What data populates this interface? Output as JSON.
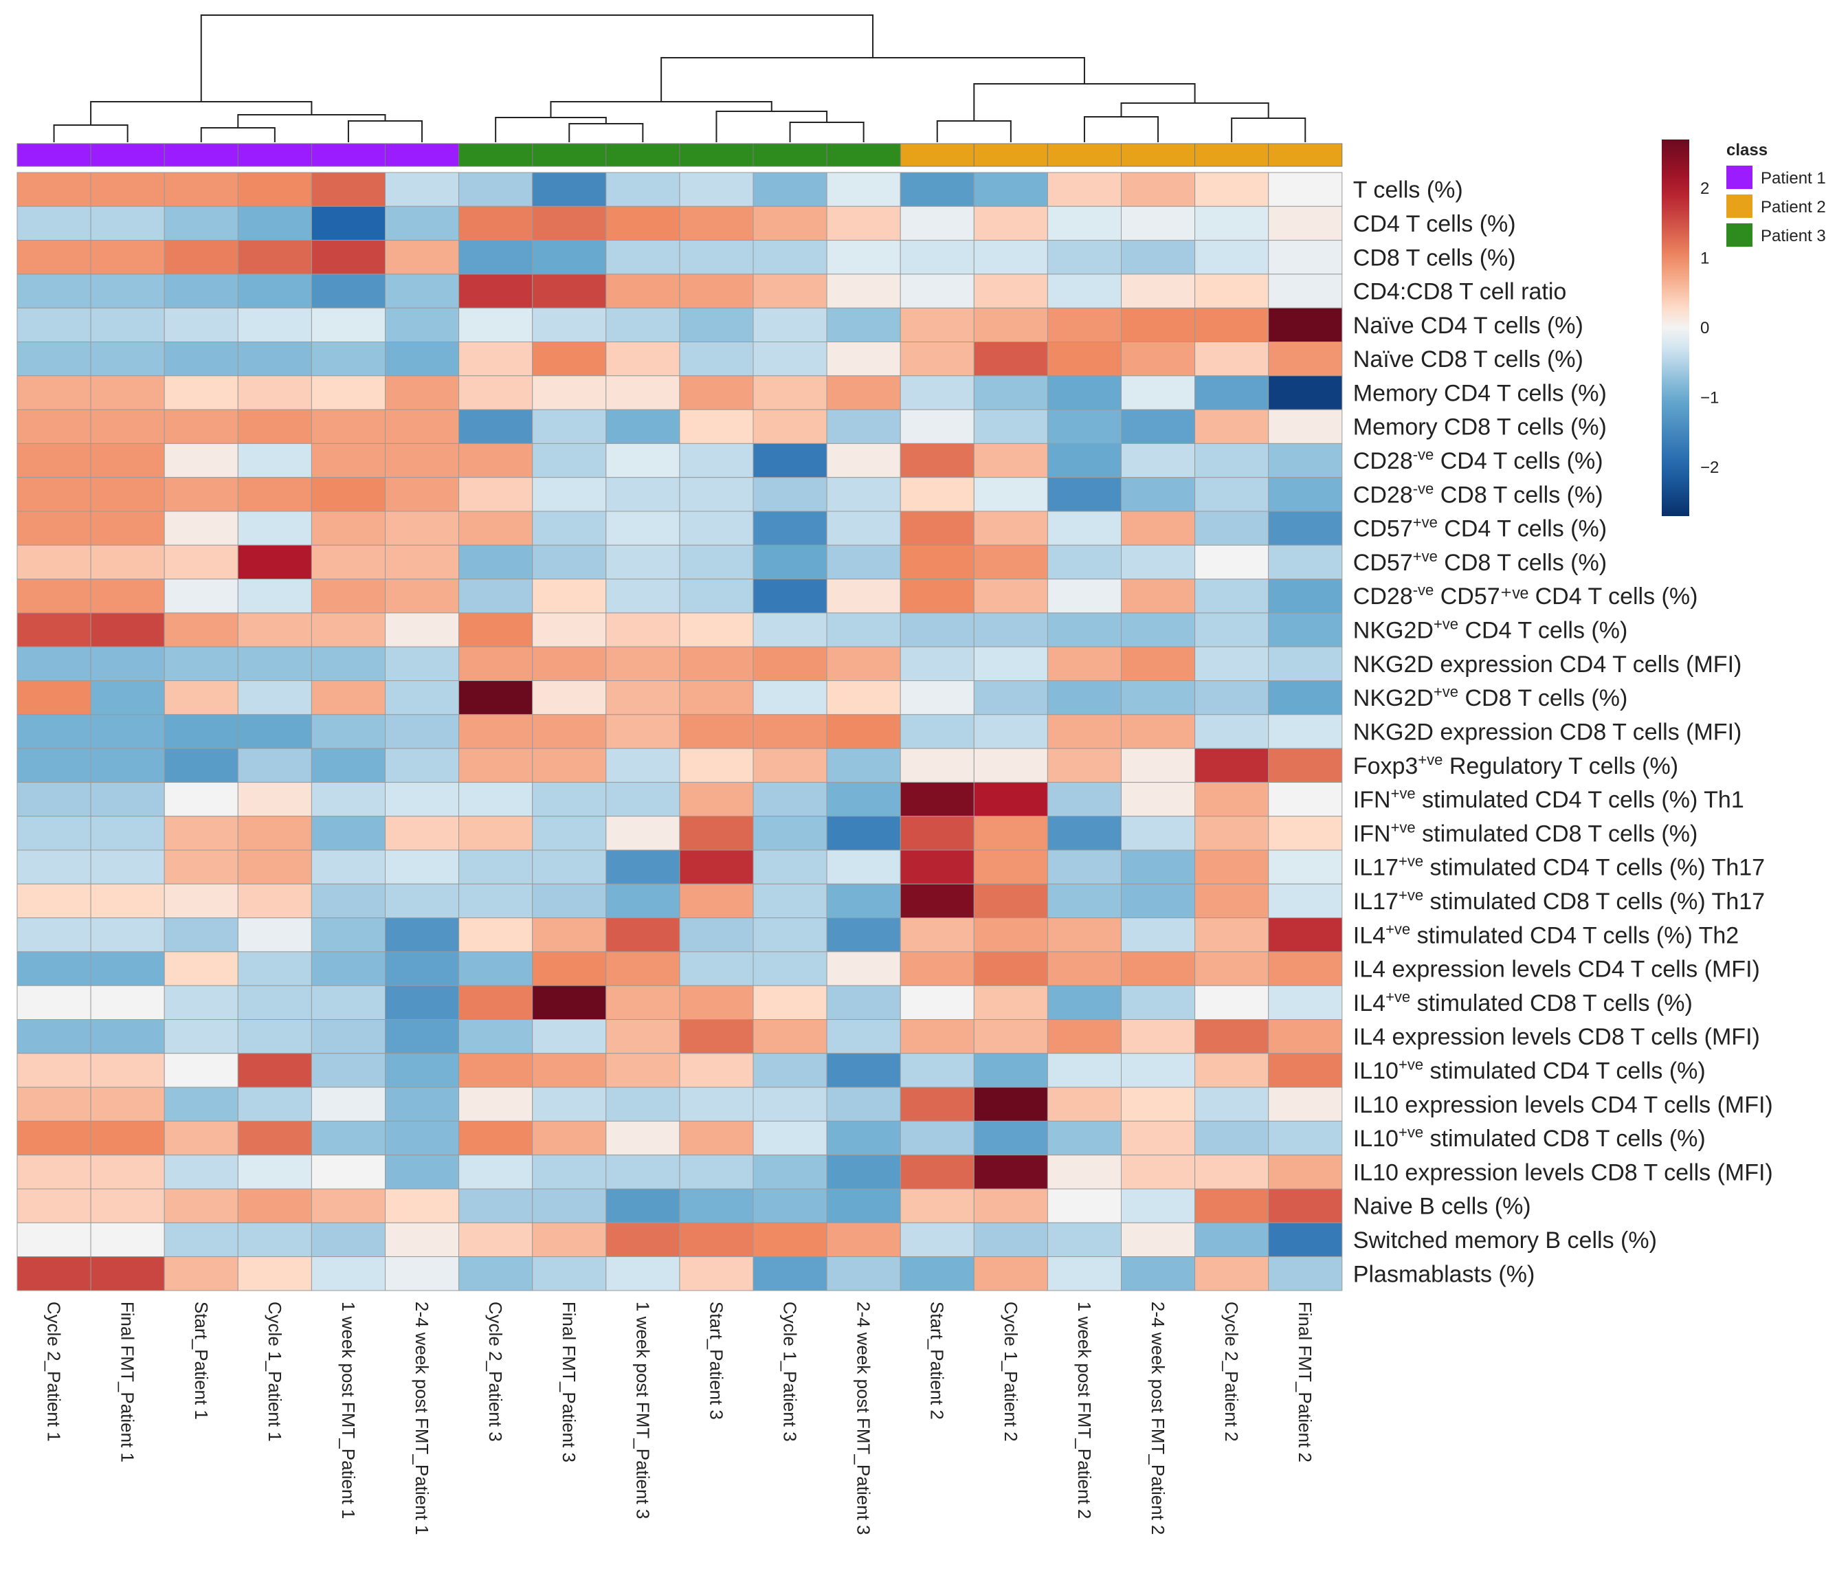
{
  "chart_data": {
    "type": "heatmap",
    "title": "",
    "value_range": [
      -2.7,
      2.7
    ],
    "color_scale": {
      "low": "#08306b",
      "mid": "#f3f3f3",
      "high": "#6b0a1f",
      "ticks": [
        "2",
        "1",
        "0",
        "−1",
        "−2"
      ],
      "tick_values": [
        2,
        1,
        0,
        -1,
        -2
      ]
    },
    "class_legend": {
      "title": "class",
      "items": [
        {
          "label": "Patient 1",
          "color": "#9b1cff"
        },
        {
          "label": "Patient 2",
          "color": "#e8a21a"
        },
        {
          "label": "Patient 3",
          "color": "#2e8b1e"
        }
      ]
    },
    "columns": [
      {
        "label": "Cycle 2_Patient 1",
        "class": "Patient 1"
      },
      {
        "label": "Final FMT_Patient 1",
        "class": "Patient 1"
      },
      {
        "label": "Start_Patient 1",
        "class": "Patient 1"
      },
      {
        "label": "Cycle 1_Patient 1",
        "class": "Patient 1"
      },
      {
        "label": "1 week post FMT_Patient 1",
        "class": "Patient 1"
      },
      {
        "label": "2-4 week post FMT_Patient 1",
        "class": "Patient 1"
      },
      {
        "label": "Cycle 2_Patient 3",
        "class": "Patient 3"
      },
      {
        "label": "Final FMT_Patient 3",
        "class": "Patient 3"
      },
      {
        "label": "1 week post FMT_Patient 3",
        "class": "Patient 3"
      },
      {
        "label": "Start_Patient 3",
        "class": "Patient 3"
      },
      {
        "label": "Cycle 1_Patient 3",
        "class": "Patient 3"
      },
      {
        "label": "2-4 week post FMT_Patient 3",
        "class": "Patient 3"
      },
      {
        "label": "Start_Patient 2",
        "class": "Patient 2"
      },
      {
        "label": "Cycle 1_Patient 2",
        "class": "Patient 2"
      },
      {
        "label": "1 week post FMT_Patient 2",
        "class": "Patient 2"
      },
      {
        "label": "2-4 week post FMT_Patient 2",
        "class": "Patient 2"
      },
      {
        "label": "Cycle 2_Patient 2",
        "class": "Patient 2"
      },
      {
        "label": "Final FMT_Patient 2",
        "class": "Patient 2"
      }
    ],
    "rows": [
      {
        "base": "T cells (%)",
        "sup": "",
        "rest": ""
      },
      {
        "base": "CD4 T cells (%)",
        "sup": "",
        "rest": ""
      },
      {
        "base": "CD8 T cells (%)",
        "sup": "",
        "rest": ""
      },
      {
        "base": "CD4:CD8 T cell ratio",
        "sup": "",
        "rest": ""
      },
      {
        "base": "Naïve CD4 T cells (%)",
        "sup": "",
        "rest": ""
      },
      {
        "base": "Naïve CD8 T cells (%)",
        "sup": "",
        "rest": ""
      },
      {
        "base": "Memory CD4 T cells (%)",
        "sup": "",
        "rest": ""
      },
      {
        "base": "Memory CD8 T cells (%)",
        "sup": "",
        "rest": ""
      },
      {
        "base": "CD28",
        "sup": "-ve",
        "rest": " CD4 T cells (%)"
      },
      {
        "base": "CD28",
        "sup": "-ve",
        "rest": " CD8 T cells (%)"
      },
      {
        "base": "CD57",
        "sup": "+ve",
        "rest": " CD4 T cells (%)"
      },
      {
        "base": "CD57",
        "sup": "+ve",
        "rest": " CD8 T cells (%)"
      },
      {
        "base": "CD28",
        "sup": "-ve",
        "rest": " CD57⁺ᵛᵉ CD4 T cells (%)"
      },
      {
        "base": "NKG2D",
        "sup": "+ve",
        "rest": " CD4 T cells (%)"
      },
      {
        "base": "NKG2D expression CD4 T cells (MFI)",
        "sup": "",
        "rest": ""
      },
      {
        "base": "NKG2D",
        "sup": "+ve",
        "rest": " CD8 T cells (%)"
      },
      {
        "base": "NKG2D expression CD8 T cells (MFI)",
        "sup": "",
        "rest": ""
      },
      {
        "base": "Foxp3",
        "sup": "+ve",
        "rest": " Regulatory T cells (%)"
      },
      {
        "base": "IFN",
        "sup": "+ve",
        "rest": "  stimulated CD4 T cells (%) Th1"
      },
      {
        "base": "IFN",
        "sup": "+ve",
        "rest": "  stimulated CD8 T cells (%)"
      },
      {
        "base": "IL17",
        "sup": "+ve",
        "rest": " stimulated CD4 T cells (%) Th17"
      },
      {
        "base": "IL17",
        "sup": "+ve",
        "rest": " stimulated CD8 T cells (%) Th17"
      },
      {
        "base": "IL4",
        "sup": "+ve",
        "rest": " stimulated CD4 T cells (%) Th2"
      },
      {
        "base": "IL4 expression levels CD4 T cells (MFI)",
        "sup": "",
        "rest": ""
      },
      {
        "base": "IL4",
        "sup": "+ve",
        "rest": " stimulated CD8 T cells (%)"
      },
      {
        "base": "IL4 expression levels CD8 T cells (MFI)",
        "sup": "",
        "rest": ""
      },
      {
        "base": "IL10",
        "sup": "+ve",
        "rest": "  stimulated CD4 T cells (%)"
      },
      {
        "base": "IL10 expression levels CD4 T cells (MFI)",
        "sup": "",
        "rest": ""
      },
      {
        "base": "IL10",
        "sup": "+ve",
        "rest": "  stimulated CD8 T cells (%)"
      },
      {
        "base": "IL10 expression levels CD8 T cells (MFI)",
        "sup": "",
        "rest": ""
      },
      {
        "base": "Naive B cells (%)",
        "sup": "",
        "rest": ""
      },
      {
        "base": "Switched memory B cells (%)",
        "sup": "",
        "rest": ""
      },
      {
        "base": "Plasmablasts (%)",
        "sup": "",
        "rest": ""
      }
    ],
    "values": [
      [
        0.9,
        0.9,
        0.9,
        1.0,
        1.3,
        -0.4,
        -0.6,
        -1.5,
        -0.5,
        -0.4,
        -0.8,
        -0.2,
        -1.2,
        -0.9,
        0.4,
        0.6,
        0.3,
        0.0
      ],
      [
        -0.5,
        -0.5,
        -0.7,
        -0.9,
        -2.0,
        -0.7,
        1.1,
        1.2,
        1.0,
        0.9,
        0.7,
        0.4,
        -0.1,
        0.4,
        -0.2,
        -0.1,
        -0.2,
        0.1
      ],
      [
        0.9,
        0.9,
        1.1,
        1.3,
        1.6,
        0.7,
        -1.1,
        -1.0,
        -0.5,
        -0.5,
        -0.5,
        -0.2,
        -0.3,
        -0.3,
        -0.5,
        -0.6,
        -0.3,
        -0.1
      ],
      [
        -0.7,
        -0.7,
        -0.8,
        -0.9,
        -1.3,
        -0.7,
        1.7,
        1.6,
        0.8,
        0.8,
        0.6,
        0.1,
        -0.1,
        0.4,
        -0.3,
        0.2,
        0.3,
        -0.1
      ],
      [
        -0.5,
        -0.5,
        -0.4,
        -0.3,
        -0.2,
        -0.7,
        -0.2,
        -0.4,
        -0.5,
        -0.7,
        -0.4,
        -0.7,
        0.6,
        0.7,
        0.9,
        1.0,
        1.0,
        2.7
      ],
      [
        -0.7,
        -0.7,
        -0.8,
        -0.8,
        -0.7,
        -0.9,
        0.4,
        1.0,
        0.4,
        -0.5,
        -0.4,
        0.1,
        0.6,
        1.4,
        1.0,
        0.8,
        0.4,
        0.9
      ],
      [
        0.7,
        0.7,
        0.3,
        0.4,
        0.3,
        0.8,
        0.4,
        0.2,
        0.2,
        0.8,
        0.5,
        0.8,
        -0.4,
        -0.7,
        -1.0,
        -0.2,
        -1.1,
        -2.5
      ],
      [
        0.8,
        0.8,
        0.8,
        0.9,
        0.8,
        0.8,
        -1.3,
        -0.5,
        -0.9,
        0.3,
        0.5,
        -0.6,
        -0.1,
        -0.5,
        -0.9,
        -1.1,
        0.6,
        0.1
      ],
      [
        0.9,
        0.9,
        0.1,
        -0.3,
        0.8,
        0.8,
        0.8,
        -0.5,
        -0.2,
        -0.4,
        -1.7,
        0.1,
        1.2,
        0.6,
        -1.0,
        -0.4,
        -0.5,
        -0.7
      ],
      [
        0.9,
        0.9,
        0.8,
        0.9,
        1.0,
        0.8,
        0.4,
        -0.3,
        -0.4,
        -0.4,
        -0.6,
        -0.4,
        0.3,
        -0.2,
        -1.4,
        -0.8,
        -0.5,
        -0.9
      ],
      [
        0.9,
        0.9,
        0.1,
        -0.3,
        0.7,
        0.6,
        0.7,
        -0.5,
        -0.3,
        -0.4,
        -1.4,
        -0.4,
        1.1,
        0.6,
        -0.3,
        0.7,
        -0.6,
        -1.3
      ],
      [
        0.5,
        0.5,
        0.4,
        2.0,
        0.6,
        0.6,
        -0.8,
        -0.6,
        -0.4,
        -0.5,
        -1.0,
        -0.6,
        1.0,
        0.9,
        -0.5,
        -0.4,
        0.0,
        -0.5
      ],
      [
        0.9,
        0.9,
        -0.1,
        -0.3,
        0.8,
        0.7,
        -0.6,
        0.3,
        -0.4,
        -0.5,
        -1.7,
        0.2,
        1.0,
        0.6,
        -0.1,
        0.7,
        -0.5,
        -1.0
      ],
      [
        1.5,
        1.6,
        0.8,
        0.6,
        0.6,
        0.1,
        1.0,
        0.2,
        0.4,
        0.3,
        -0.4,
        -0.5,
        -0.6,
        -0.6,
        -0.7,
        -0.7,
        -0.5,
        -0.9
      ],
      [
        -0.8,
        -0.8,
        -0.7,
        -0.7,
        -0.7,
        -0.5,
        0.8,
        0.8,
        0.7,
        0.8,
        0.9,
        0.7,
        -0.4,
        -0.3,
        0.7,
        0.9,
        -0.4,
        -0.5
      ],
      [
        1.0,
        -0.9,
        0.5,
        -0.4,
        0.7,
        -0.5,
        2.7,
        0.2,
        0.6,
        0.7,
        -0.3,
        0.3,
        -0.1,
        -0.6,
        -0.8,
        -0.7,
        -0.6,
        -1.0
      ],
      [
        -0.9,
        -0.9,
        -1.0,
        -1.0,
        -0.7,
        -0.6,
        0.8,
        0.8,
        0.6,
        0.9,
        0.9,
        1.0,
        -0.5,
        -0.4,
        0.7,
        0.7,
        -0.4,
        -0.3
      ],
      [
        -0.9,
        -0.9,
        -1.2,
        -0.6,
        -0.9,
        -0.5,
        0.7,
        0.7,
        -0.4,
        0.3,
        0.6,
        -0.7,
        0.1,
        0.1,
        0.6,
        0.1,
        1.8,
        1.2
      ],
      [
        -0.6,
        -0.6,
        0.0,
        0.2,
        -0.4,
        -0.3,
        -0.3,
        -0.5,
        -0.5,
        0.7,
        -0.6,
        -0.9,
        2.5,
        2.0,
        -0.6,
        0.1,
        0.7,
        0.0
      ],
      [
        -0.5,
        -0.5,
        0.6,
        0.7,
        -0.8,
        0.4,
        0.5,
        -0.5,
        0.1,
        1.3,
        -0.7,
        -1.6,
        1.5,
        0.9,
        -1.3,
        -0.4,
        0.6,
        0.3
      ],
      [
        -0.4,
        -0.4,
        0.6,
        0.7,
        -0.4,
        -0.3,
        -0.5,
        -0.5,
        -1.3,
        1.8,
        -0.5,
        -0.3,
        1.9,
        0.9,
        -0.6,
        -0.8,
        0.8,
        -0.2
      ],
      [
        0.3,
        0.3,
        0.2,
        0.4,
        -0.6,
        -0.5,
        -0.5,
        -0.6,
        -0.9,
        0.8,
        -0.5,
        -0.9,
        2.5,
        1.2,
        -0.7,
        -0.8,
        0.8,
        -0.3
      ],
      [
        -0.4,
        -0.4,
        -0.6,
        -0.1,
        -0.7,
        -1.3,
        0.3,
        0.7,
        1.4,
        -0.6,
        -0.5,
        -1.3,
        0.6,
        0.8,
        0.7,
        -0.4,
        0.6,
        1.8
      ],
      [
        -0.9,
        -0.9,
        0.3,
        -0.5,
        -0.8,
        -1.1,
        -0.8,
        1.0,
        0.9,
        -0.5,
        -0.5,
        0.1,
        0.8,
        1.1,
        0.8,
        0.9,
        0.7,
        0.9
      ],
      [
        0.0,
        0.0,
        -0.4,
        -0.5,
        -0.5,
        -1.3,
        1.1,
        2.7,
        0.7,
        0.8,
        0.3,
        -0.6,
        0.0,
        0.5,
        -0.9,
        -0.5,
        0.0,
        -0.3
      ],
      [
        -0.8,
        -0.8,
        -0.4,
        -0.5,
        -0.6,
        -1.1,
        -0.7,
        -0.4,
        0.6,
        1.2,
        0.7,
        -0.5,
        0.7,
        0.6,
        0.9,
        0.4,
        1.2,
        0.8
      ],
      [
        0.4,
        0.4,
        0.0,
        1.5,
        -0.6,
        -0.9,
        0.9,
        0.8,
        0.6,
        0.4,
        -0.6,
        -1.4,
        -0.5,
        -0.9,
        -0.3,
        -0.3,
        0.5,
        1.1
      ],
      [
        0.6,
        0.6,
        -0.7,
        -0.5,
        -0.1,
        -0.8,
        0.1,
        -0.4,
        -0.5,
        -0.4,
        -0.4,
        -0.6,
        1.3,
        2.8,
        0.5,
        0.3,
        -0.4,
        0.1
      ],
      [
        1.0,
        1.0,
        0.6,
        1.2,
        -0.7,
        -0.8,
        1.0,
        0.7,
        0.1,
        0.7,
        -0.3,
        -0.9,
        -0.6,
        -1.1,
        -0.7,
        0.4,
        -0.6,
        -0.5
      ],
      [
        0.4,
        0.4,
        -0.4,
        -0.2,
        0.0,
        -0.8,
        -0.3,
        -0.5,
        -0.5,
        -0.5,
        -0.7,
        -1.2,
        1.3,
        2.6,
        0.1,
        0.4,
        0.4,
        0.7
      ],
      [
        0.4,
        0.4,
        0.6,
        0.8,
        0.6,
        0.3,
        -0.6,
        -0.6,
        -1.2,
        -0.9,
        -0.8,
        -1.0,
        0.5,
        0.6,
        0.0,
        -0.3,
        1.1,
        1.4
      ],
      [
        0.0,
        0.0,
        -0.5,
        -0.5,
        -0.6,
        0.1,
        0.4,
        0.6,
        1.2,
        1.1,
        1.0,
        0.8,
        -0.4,
        -0.6,
        -0.5,
        0.1,
        -0.8,
        -1.7
      ],
      [
        1.6,
        1.6,
        0.6,
        0.3,
        -0.3,
        -0.1,
        -0.7,
        -0.5,
        -0.3,
        0.4,
        -1.1,
        -0.6,
        -0.9,
        0.7,
        -0.3,
        -0.8,
        0.6,
        -0.6
      ]
    ]
  }
}
